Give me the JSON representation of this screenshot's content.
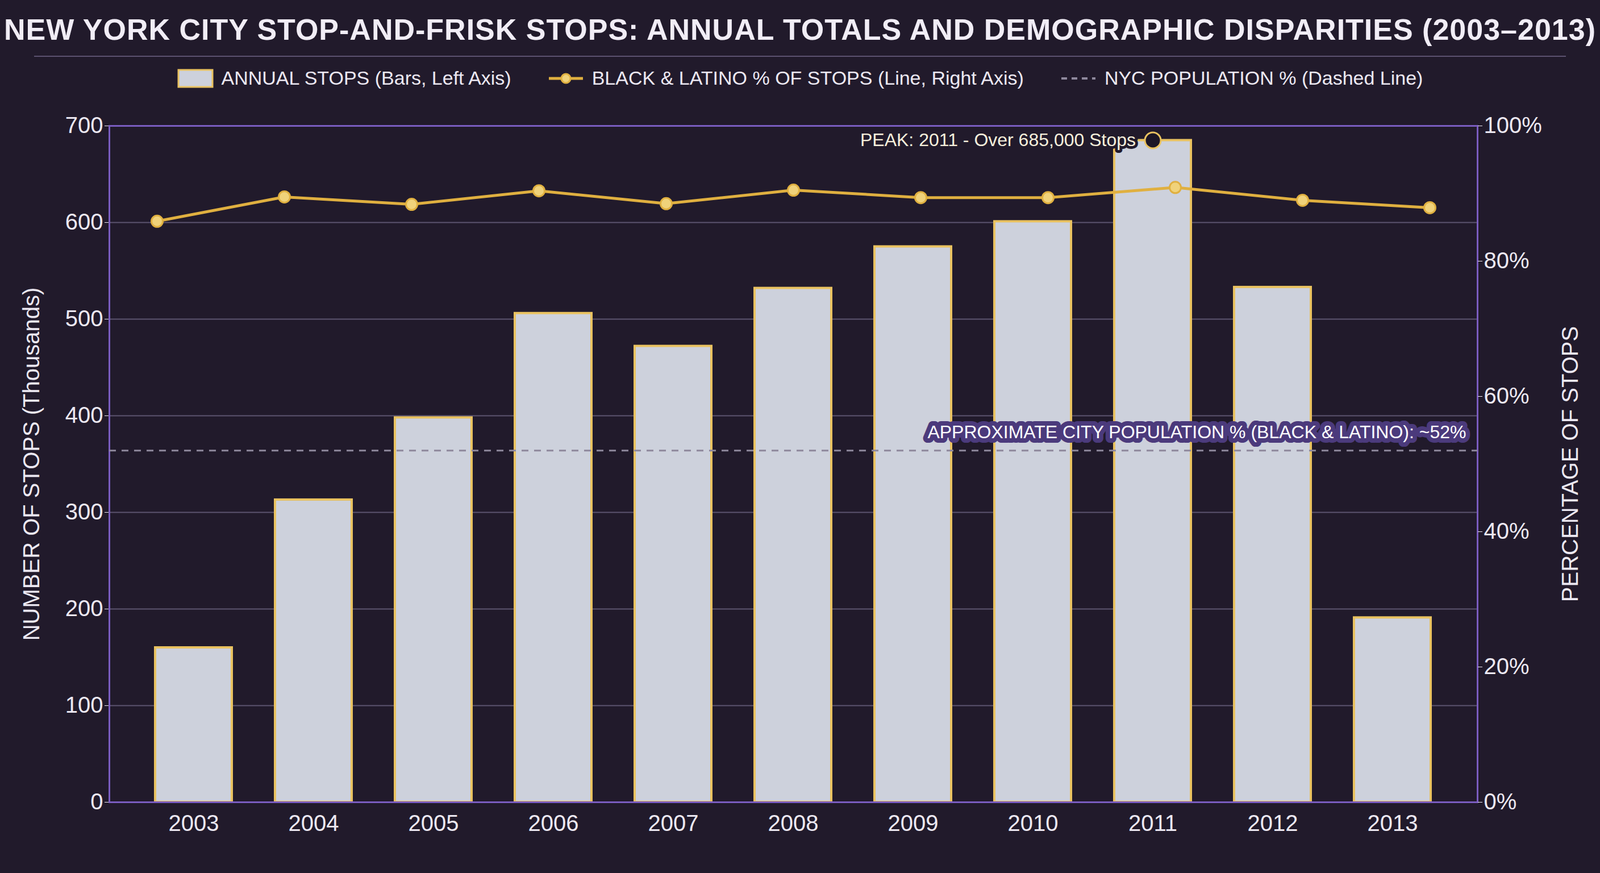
{
  "chart_data": {
    "type": "bar",
    "title": "NEW YORK CITY STOP-AND-FRISK STOPS: ANNUAL TOTALS AND DEMOGRAPHIC DISPARITIES (2003–2013)",
    "categories": [
      "2003",
      "2004",
      "2005",
      "2006",
      "2007",
      "2008",
      "2009",
      "2010",
      "2011",
      "2012",
      "2013"
    ],
    "series": [
      {
        "name": "ANNUAL STOPS (Bars, Left Axis)",
        "type": "bar",
        "color": "#cdd1dc",
        "values": [
          160,
          313,
          398,
          506,
          472,
          532,
          575,
          601,
          685,
          533,
          191
        ]
      },
      {
        "name": "BLACK & LATINO % OF STOPS (Line, Right Axis)",
        "type": "line",
        "axis": "y2",
        "color": "#e0b040",
        "marker": "circle",
        "values": [
          85.9,
          89.5,
          88.4,
          90.4,
          88.5,
          90.5,
          89.4,
          89.4,
          90.9,
          89.0,
          87.9
        ]
      }
    ],
    "reference_lines": [
      {
        "name": "NYC POPULATION % (Dashed Line)",
        "axis": "y2",
        "value": 52,
        "line_style": "dashed",
        "color": "#8e889c",
        "label": "APPROXIMATE CITY POPULATION % (BLACK & LATINO): ~52%"
      }
    ],
    "annotations": [
      {
        "text": "PEAK: 2011 - Over 685,000 Stops",
        "x": "2011",
        "y": 685
      }
    ],
    "ylabel": "NUMBER OF STOPS (Thousands)",
    "y2label": "PERCENTAGE OF STOPS",
    "ylim": [
      0,
      700
    ],
    "yticks": [
      0,
      100,
      200,
      300,
      400,
      500,
      600,
      700
    ],
    "y2lim": [
      0,
      100
    ],
    "y2ticks": [
      {
        "value": 0,
        "label": "0%"
      },
      {
        "value": 20,
        "label": "20%"
      },
      {
        "value": 40,
        "label": "40%"
      },
      {
        "value": 60,
        "label": "60%"
      },
      {
        "value": 80,
        "label": "80%"
      },
      {
        "value": 100,
        "label": "100%"
      }
    ],
    "grid": true,
    "legend": "top"
  }
}
